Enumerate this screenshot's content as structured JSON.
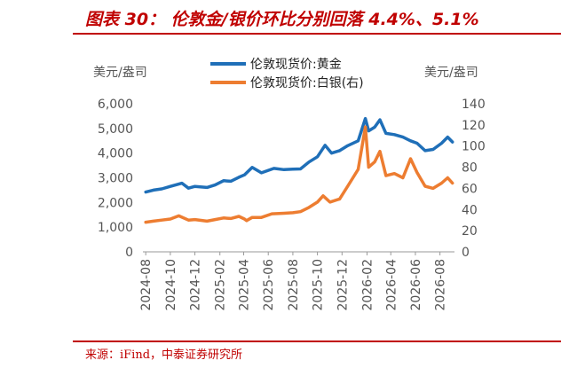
{
  "figure": {
    "title": "图表 30： 伦敦金/银价环比分别回落 4.4%、5.1%",
    "source": "来源：iFind，中泰证券研究所"
  },
  "chart_data": {
    "type": "line",
    "x_ticks": [
      "2024-08",
      "2024-10",
      "2024-12",
      "2025-02",
      "2025-04",
      "2025-06",
      "2025-08",
      "2025-10",
      "2025-12",
      "2026-02",
      "2026-04",
      "2026-06",
      "2026-08"
    ],
    "left_axis": {
      "unit": "美元/盎司",
      "ylim": [
        0,
        6000
      ],
      "ticks": [
        "0",
        "1,000",
        "2,000",
        "3,000",
        "4,000",
        "5,000",
        "6,000"
      ]
    },
    "right_axis": {
      "unit": "美元/盎司",
      "ylim": [
        0,
        140
      ],
      "ticks": [
        "0",
        "20",
        "40",
        "60",
        "80",
        "100",
        "120",
        "140"
      ]
    },
    "legend_position": "top-center",
    "series": [
      {
        "name": "伦敦现货价:黄金",
        "axis": "left",
        "color": "#1f6fb8",
        "values": [
          [
            "2024-08-01",
            2420
          ],
          [
            "2024-08-20",
            2500
          ],
          [
            "2024-09-10",
            2550
          ],
          [
            "2024-10-01",
            2650
          ],
          [
            "2024-10-30",
            2780
          ],
          [
            "2024-11-15",
            2580
          ],
          [
            "2024-12-01",
            2650
          ],
          [
            "2024-12-31",
            2610
          ],
          [
            "2025-01-20",
            2710
          ],
          [
            "2025-02-10",
            2880
          ],
          [
            "2025-02-28",
            2860
          ],
          [
            "2025-03-20",
            3020
          ],
          [
            "2025-04-03",
            3120
          ],
          [
            "2025-04-22",
            3420
          ],
          [
            "2025-05-15",
            3200
          ],
          [
            "2025-06-15",
            3380
          ],
          [
            "2025-07-10",
            3330
          ],
          [
            "2025-08-01",
            3350
          ],
          [
            "2025-08-20",
            3360
          ],
          [
            "2025-09-10",
            3640
          ],
          [
            "2025-10-01",
            3850
          ],
          [
            "2025-10-20",
            4320
          ],
          [
            "2025-11-05",
            4000
          ],
          [
            "2025-11-25",
            4100
          ],
          [
            "2025-12-15",
            4300
          ],
          [
            "2026-01-10",
            4500
          ],
          [
            "2026-01-28",
            5400
          ],
          [
            "2026-02-05",
            4900
          ],
          [
            "2026-02-20",
            5050
          ],
          [
            "2026-03-05",
            5350
          ],
          [
            "2026-03-20",
            4800
          ],
          [
            "2026-04-10",
            4750
          ],
          [
            "2026-05-01",
            4650
          ],
          [
            "2026-05-20",
            4500
          ],
          [
            "2026-06-05",
            4400
          ],
          [
            "2026-06-25",
            4100
          ],
          [
            "2026-07-15",
            4150
          ],
          [
            "2026-08-05",
            4400
          ],
          [
            "2026-08-20",
            4650
          ],
          [
            "2026-09-01",
            4450
          ]
        ]
      },
      {
        "name": "伦敦现货价:白银(右)",
        "axis": "right",
        "color": "#ed7d31",
        "values": [
          [
            "2024-08-01",
            28
          ],
          [
            "2024-08-20",
            29
          ],
          [
            "2024-09-10",
            30
          ],
          [
            "2024-10-01",
            31
          ],
          [
            "2024-10-22",
            34
          ],
          [
            "2024-11-15",
            30
          ],
          [
            "2024-12-01",
            30.5
          ],
          [
            "2024-12-31",
            29
          ],
          [
            "2025-01-20",
            30.5
          ],
          [
            "2025-02-10",
            32
          ],
          [
            "2025-02-28",
            31.5
          ],
          [
            "2025-03-20",
            33.5
          ],
          [
            "2025-04-03",
            31
          ],
          [
            "2025-04-08",
            29.5
          ],
          [
            "2025-04-22",
            32.5
          ],
          [
            "2025-05-15",
            32.5
          ],
          [
            "2025-06-10",
            36
          ],
          [
            "2025-07-10",
            36.5
          ],
          [
            "2025-08-01",
            37
          ],
          [
            "2025-08-20",
            38
          ],
          [
            "2025-09-10",
            42
          ],
          [
            "2025-10-01",
            47
          ],
          [
            "2025-10-15",
            53
          ],
          [
            "2025-11-01",
            47
          ],
          [
            "2025-11-25",
            50
          ],
          [
            "2025-12-15",
            62
          ],
          [
            "2026-01-10",
            78
          ],
          [
            "2026-01-28",
            118
          ],
          [
            "2026-02-05",
            80
          ],
          [
            "2026-02-20",
            85
          ],
          [
            "2026-03-05",
            95
          ],
          [
            "2026-03-20",
            72
          ],
          [
            "2026-04-10",
            74
          ],
          [
            "2026-05-01",
            70
          ],
          [
            "2026-05-20",
            88
          ],
          [
            "2026-06-05",
            75
          ],
          [
            "2026-06-25",
            62
          ],
          [
            "2026-07-15",
            60
          ],
          [
            "2026-08-05",
            65
          ],
          [
            "2026-08-20",
            70
          ],
          [
            "2026-09-01",
            65
          ]
        ]
      }
    ]
  }
}
